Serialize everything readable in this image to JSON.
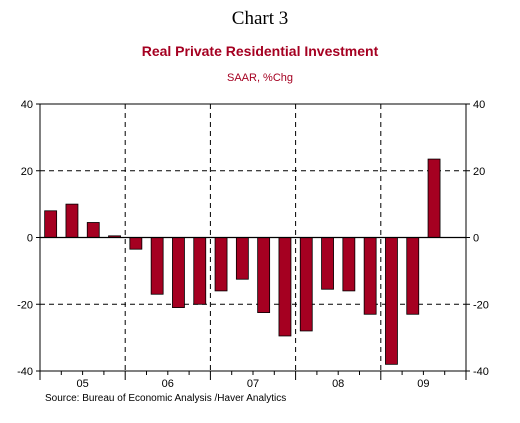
{
  "header": {
    "chart_number": "Chart 3"
  },
  "footer": {
    "source": "Source:  Bureau of Economic Analysis /Haver Analytics"
  },
  "chart_data": {
    "type": "bar",
    "title": "Real Private Residential Investment",
    "subtitle": "SAAR, %Chg",
    "xlabel": "",
    "ylabel": "",
    "ylim": [
      -40,
      40
    ],
    "yticks": [
      -40,
      -20,
      0,
      20,
      40
    ],
    "grid": true,
    "legend": "none",
    "colors": {
      "bar": "#a50021",
      "bar_outline": "#000000",
      "title": "#a50021",
      "axis": "#000000"
    },
    "year_labels": [
      "05",
      "06",
      "07",
      "08",
      "09"
    ],
    "categories": [
      "05Q1",
      "05Q2",
      "05Q3",
      "05Q4",
      "06Q1",
      "06Q2",
      "06Q3",
      "06Q4",
      "07Q1",
      "07Q2",
      "07Q3",
      "07Q4",
      "08Q1",
      "08Q2",
      "08Q3",
      "08Q4",
      "09Q1",
      "09Q2",
      "09Q3"
    ],
    "values": [
      8,
      10,
      4.5,
      0.5,
      -3.5,
      -17,
      -21,
      -20,
      -16,
      -12.5,
      -22.5,
      -29.5,
      -28,
      -15.5,
      -16,
      -23,
      -38,
      -23,
      23.5
    ]
  }
}
